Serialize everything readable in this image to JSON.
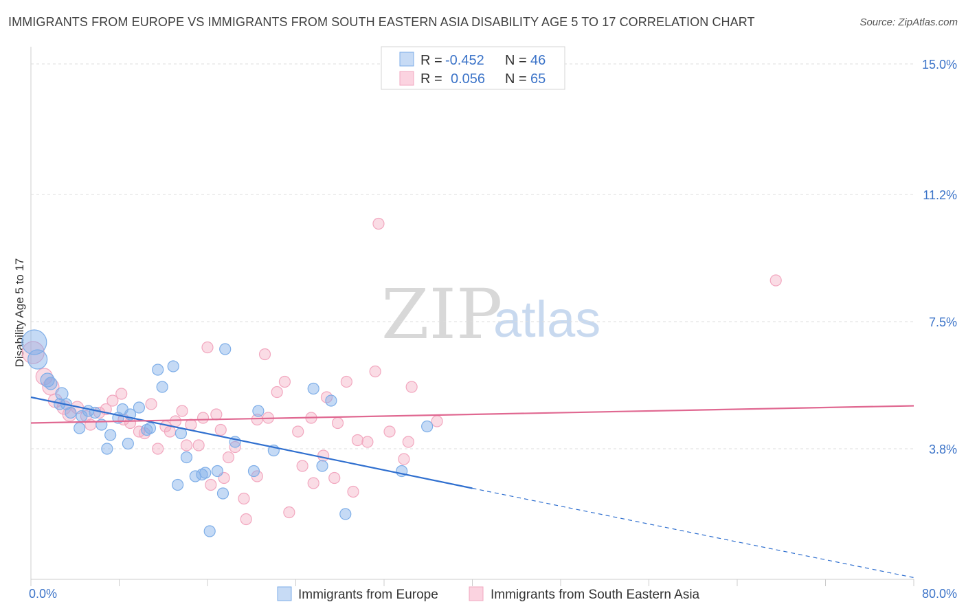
{
  "title": "IMMIGRANTS FROM EUROPE VS IMMIGRANTS FROM SOUTH EASTERN ASIA DISABILITY AGE 5 TO 17 CORRELATION CHART",
  "source": "Source: ZipAtlas.com",
  "watermark": {
    "zip": "ZIP",
    "atlas": "atlas"
  },
  "colors": {
    "europe": "#7eaee8",
    "europe_line": "#2f6fcf",
    "asia": "#f2a7bf",
    "asia_line": "#e06891",
    "tick_text": "#3b73c8"
  },
  "legend": {
    "europe": {
      "r_label": "R =",
      "r_value": "-0.452",
      "n_label": "N =",
      "n_value": "46"
    },
    "asia": {
      "r_label": "R =",
      "r_value": "0.056",
      "n_label": "N =",
      "n_value": "65"
    }
  },
  "chart_data": {
    "type": "scatter",
    "ylabel": "Disability Age 5 to 17",
    "xlim": [
      0,
      80
    ],
    "ylim": [
      0,
      15.5
    ],
    "y_ticks": [
      {
        "value": 3.8,
        "label": "3.8%"
      },
      {
        "value": 7.5,
        "label": "7.5%"
      },
      {
        "value": 11.2,
        "label": "11.2%"
      },
      {
        "value": 15.0,
        "label": "15.0%"
      }
    ],
    "x_tick_labels": {
      "min": "0.0%",
      "max": "80.0%"
    },
    "legend_position": "top-center",
    "series": [
      {
        "name": "Immigrants from Europe",
        "color": "#7eaee8",
        "trend": {
          "x0": 0,
          "y0": 5.3,
          "x1": 40,
          "y1": 2.65,
          "dash_to_x": 80,
          "dash_to_y": 0.05
        },
        "points": [
          [
            0.3,
            6.9,
            18
          ],
          [
            0.6,
            6.4,
            14
          ],
          [
            1.5,
            5.8,
            10
          ],
          [
            1.8,
            5.7,
            9
          ],
          [
            2.8,
            5.4,
            9
          ],
          [
            2.6,
            5.1,
            8
          ],
          [
            3.2,
            5.1,
            8
          ],
          [
            3.6,
            4.85,
            8
          ],
          [
            4.6,
            4.75,
            8
          ],
          [
            5.2,
            4.9,
            8
          ],
          [
            5.8,
            4.85,
            8
          ],
          [
            4.4,
            4.4,
            8
          ],
          [
            6.4,
            4.5,
            8
          ],
          [
            7.2,
            4.2,
            8
          ],
          [
            7.9,
            4.7,
            8
          ],
          [
            8.3,
            4.95,
            8
          ],
          [
            9.0,
            4.8,
            8
          ],
          [
            9.8,
            5.0,
            8
          ],
          [
            6.9,
            3.8,
            8
          ],
          [
            8.8,
            3.95,
            8
          ],
          [
            10.5,
            4.35,
            8
          ],
          [
            10.8,
            4.4,
            8
          ],
          [
            11.5,
            6.1,
            8
          ],
          [
            11.9,
            5.6,
            8
          ],
          [
            12.9,
            6.2,
            8
          ],
          [
            13.6,
            4.25,
            8
          ],
          [
            14.1,
            3.55,
            8
          ],
          [
            13.3,
            2.75,
            8
          ],
          [
            14.9,
            3.0,
            8
          ],
          [
            15.5,
            3.05,
            8
          ],
          [
            15.8,
            3.1,
            8
          ],
          [
            16.2,
            1.4,
            8
          ],
          [
            16.9,
            3.15,
            8
          ],
          [
            17.4,
            2.5,
            8
          ],
          [
            17.6,
            6.7,
            8
          ],
          [
            18.5,
            4.0,
            8
          ],
          [
            20.2,
            3.15,
            8
          ],
          [
            20.6,
            4.9,
            8
          ],
          [
            22.0,
            3.75,
            8
          ],
          [
            25.6,
            5.55,
            8
          ],
          [
            26.4,
            3.3,
            8
          ],
          [
            27.2,
            5.2,
            8
          ],
          [
            28.5,
            1.9,
            8
          ],
          [
            33.6,
            3.15,
            8
          ],
          [
            35.9,
            4.45,
            8
          ],
          [
            40.0,
            2.65,
            0
          ]
        ]
      },
      {
        "name": "Immigrants from South Eastern Asia",
        "color": "#f2a7bf",
        "trend": {
          "x0": 0,
          "y0": 4.55,
          "x1": 80,
          "y1": 5.05
        },
        "points": [
          [
            0.2,
            6.6,
            16
          ],
          [
            1.2,
            5.9,
            12
          ],
          [
            1.8,
            5.6,
            12
          ],
          [
            2.2,
            5.2,
            10
          ],
          [
            3.0,
            5.0,
            10
          ],
          [
            3.5,
            4.8,
            10
          ],
          [
            4.2,
            5.0,
            9
          ],
          [
            5.0,
            4.75,
            8
          ],
          [
            5.4,
            4.5,
            8
          ],
          [
            6.2,
            4.85,
            8
          ],
          [
            6.8,
            4.95,
            8
          ],
          [
            7.4,
            5.2,
            8
          ],
          [
            8.2,
            5.4,
            8
          ],
          [
            8.4,
            4.65,
            8
          ],
          [
            9.0,
            4.55,
            8
          ],
          [
            9.8,
            4.3,
            8
          ],
          [
            10.3,
            4.25,
            8
          ],
          [
            10.9,
            5.1,
            8
          ],
          [
            11.5,
            3.8,
            8
          ],
          [
            12.2,
            4.45,
            8
          ],
          [
            12.6,
            4.3,
            8
          ],
          [
            13.1,
            4.6,
            8
          ],
          [
            13.7,
            4.9,
            8
          ],
          [
            14.1,
            3.9,
            8
          ],
          [
            14.5,
            4.5,
            8
          ],
          [
            15.2,
            3.9,
            8
          ],
          [
            15.6,
            4.7,
            8
          ],
          [
            16.0,
            6.75,
            8
          ],
          [
            16.3,
            2.75,
            8
          ],
          [
            16.8,
            4.8,
            8
          ],
          [
            17.2,
            4.35,
            8
          ],
          [
            17.5,
            2.95,
            8
          ],
          [
            17.9,
            3.55,
            8
          ],
          [
            18.5,
            3.85,
            8
          ],
          [
            19.3,
            2.35,
            8
          ],
          [
            19.5,
            1.75,
            8
          ],
          [
            20.5,
            3.0,
            8
          ],
          [
            20.5,
            4.65,
            8
          ],
          [
            21.2,
            6.55,
            8
          ],
          [
            21.5,
            4.7,
            8
          ],
          [
            22.3,
            5.45,
            8
          ],
          [
            23.0,
            5.75,
            8
          ],
          [
            23.4,
            1.95,
            8
          ],
          [
            24.2,
            4.3,
            8
          ],
          [
            24.6,
            3.3,
            8
          ],
          [
            25.4,
            4.7,
            8
          ],
          [
            25.6,
            2.8,
            8
          ],
          [
            26.5,
            3.6,
            8
          ],
          [
            26.8,
            5.3,
            8
          ],
          [
            27.5,
            2.95,
            8
          ],
          [
            27.8,
            4.55,
            8
          ],
          [
            28.6,
            5.75,
            8
          ],
          [
            29.2,
            2.55,
            8
          ],
          [
            29.6,
            4.05,
            8
          ],
          [
            30.5,
            4.0,
            8
          ],
          [
            31.2,
            6.05,
            8
          ],
          [
            31.5,
            10.35,
            8
          ],
          [
            32.5,
            4.3,
            8
          ],
          [
            33.8,
            3.5,
            8
          ],
          [
            34.2,
            4.0,
            8
          ],
          [
            34.5,
            5.6,
            8
          ],
          [
            36.8,
            4.6,
            8
          ],
          [
            67.5,
            8.7,
            8
          ]
        ]
      }
    ]
  }
}
